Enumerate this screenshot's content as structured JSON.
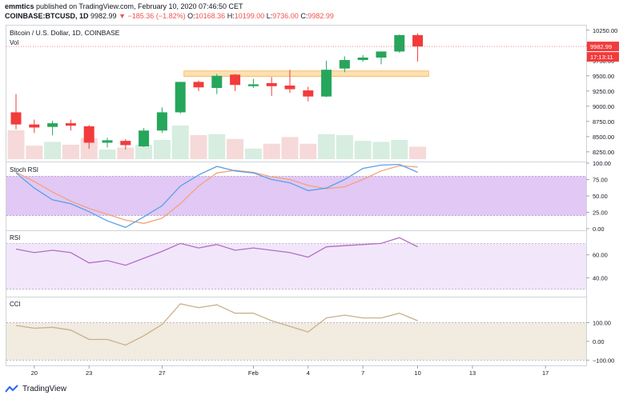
{
  "header": {
    "publisher": "emmtics",
    "published_text": "published on TradingView.com, February 10, 2020 07:46:50 CET",
    "symbol": "COINBASE:BTCUSD, 1D",
    "price": "9982.99",
    "change_arrow": "▼",
    "change": "−185.36 (−1.82%)",
    "o_label": "O:",
    "o_val": "10168.36",
    "h_label": "H:",
    "h_val": "10199.00",
    "l_label": "L:",
    "l_val": "9736.00",
    "c_label": "C:",
    "c_val": "9982.99"
  },
  "footer": {
    "brand": "TradingView"
  },
  "colors": {
    "up": "#26a65b",
    "down": "#f23b3b",
    "vol_up": "#d6ede0",
    "vol_down": "#f6d9d9",
    "stoch_k": "#5aa0e6",
    "stoch_d": "#f5a27a",
    "stoch_band": "#e1c8f5",
    "rsi_line": "#b26fc4",
    "rsi_band": "#f2e6fb",
    "cci_line": "#c9b08e",
    "cci_band": "#f1ebe0",
    "zone": "#fde0b0"
  },
  "chart_data": {
    "type": "candlestick",
    "title": "Bitcoin / U.S. Dollar, 1D, COINBASE",
    "volume_label": "Vol",
    "price_labels": [
      "9982.99",
      "17:13:11"
    ],
    "x_tick_labels": [
      "20",
      "23",
      "27",
      "Feb",
      "4",
      "7",
      "10",
      "13",
      "17"
    ],
    "y_ticks": [
      8250,
      8500,
      8750,
      9000,
      9250,
      9500,
      9750,
      10000,
      10250
    ],
    "y_tick_labels": [
      "8250.00",
      "8500.00",
      "8750.00",
      "9000.00",
      "9250.00",
      "9500.00",
      "9750.00",
      "10000.00",
      "10250.00"
    ],
    "ylim": [
      8130,
      10300
    ],
    "dates": [
      "2020-01-19",
      "2020-01-20",
      "2020-01-21",
      "2020-01-22",
      "2020-01-23",
      "2020-01-24",
      "2020-01-25",
      "2020-01-26",
      "2020-01-27",
      "2020-01-28",
      "2020-01-29",
      "2020-01-30",
      "2020-01-31",
      "2020-02-01",
      "2020-02-02",
      "2020-02-03",
      "2020-02-04",
      "2020-02-05",
      "2020-02-06",
      "2020-02-07",
      "2020-02-08",
      "2020-02-09",
      "2020-02-10"
    ],
    "candles": [
      {
        "o": 8900,
        "h": 9200,
        "l": 8620,
        "c": 8700
      },
      {
        "o": 8700,
        "h": 8780,
        "l": 8560,
        "c": 8650
      },
      {
        "o": 8660,
        "h": 8760,
        "l": 8520,
        "c": 8720
      },
      {
        "o": 8720,
        "h": 8780,
        "l": 8600,
        "c": 8680
      },
      {
        "o": 8670,
        "h": 8690,
        "l": 8300,
        "c": 8400
      },
      {
        "o": 8400,
        "h": 8480,
        "l": 8320,
        "c": 8440
      },
      {
        "o": 8430,
        "h": 8460,
        "l": 8290,
        "c": 8360
      },
      {
        "o": 8340,
        "h": 8640,
        "l": 8330,
        "c": 8600
      },
      {
        "o": 8600,
        "h": 8980,
        "l": 8560,
        "c": 8900
      },
      {
        "o": 8900,
        "h": 9400,
        "l": 8880,
        "c": 9400
      },
      {
        "o": 9400,
        "h": 9420,
        "l": 9250,
        "c": 9310
      },
      {
        "o": 9300,
        "h": 9530,
        "l": 9200,
        "c": 9500
      },
      {
        "o": 9520,
        "h": 9530,
        "l": 9250,
        "c": 9350
      },
      {
        "o": 9330,
        "h": 9450,
        "l": 9300,
        "c": 9360
      },
      {
        "o": 9380,
        "h": 9480,
        "l": 9170,
        "c": 9330
      },
      {
        "o": 9340,
        "h": 9600,
        "l": 9220,
        "c": 9280
      },
      {
        "o": 9260,
        "h": 9320,
        "l": 9080,
        "c": 9160
      },
      {
        "o": 9160,
        "h": 9750,
        "l": 9150,
        "c": 9600
      },
      {
        "o": 9620,
        "h": 9820,
        "l": 9560,
        "c": 9760
      },
      {
        "o": 9760,
        "h": 9840,
        "l": 9730,
        "c": 9800
      },
      {
        "o": 9800,
        "h": 9900,
        "l": 9690,
        "c": 9900
      },
      {
        "o": 9900,
        "h": 10180,
        "l": 9880,
        "c": 10170
      },
      {
        "o": 10170,
        "h": 10200,
        "l": 9736,
        "c": 9983
      }
    ],
    "volume": [
      0.6,
      0.28,
      0.36,
      0.3,
      0.44,
      0.2,
      0.24,
      0.3,
      0.4,
      0.7,
      0.5,
      0.52,
      0.42,
      0.22,
      0.32,
      0.46,
      0.32,
      0.52,
      0.5,
      0.38,
      0.36,
      0.4,
      0.26
    ],
    "zone": {
      "from_index": 9.2,
      "to_index": 22.6,
      "low": 9490,
      "high": 9580
    },
    "stoch_rsi": {
      "title": "Stoch RSI",
      "ylim": [
        0,
        100
      ],
      "y_ticks": [
        0,
        25,
        50,
        75,
        100
      ],
      "y_tick_labels": [
        "0.00",
        "25.00",
        "50.00",
        "75.00",
        "100.00"
      ],
      "band": [
        20,
        80
      ],
      "series": [
        {
          "values": [
            85,
            62,
            44,
            38,
            26,
            12,
            2,
            18,
            35,
            65,
            82,
            95,
            88,
            85,
            75,
            70,
            58,
            62,
            75,
            92,
            97,
            98,
            86
          ]
        },
        {
          "values": [
            86,
            72,
            56,
            42,
            31,
            22,
            13,
            8,
            16,
            38,
            65,
            85,
            89,
            86,
            79,
            75,
            66,
            61,
            64,
            75,
            88,
            96,
            94
          ]
        }
      ]
    },
    "rsi": {
      "title": "RSI",
      "ylim": [
        25,
        80
      ],
      "y_ticks": [
        40,
        60
      ],
      "y_tick_labels": [
        "40.00",
        "60.00"
      ],
      "band": [
        30,
        70
      ],
      "values": [
        65,
        62,
        64,
        62,
        53,
        55,
        51,
        57,
        63,
        70,
        66,
        69,
        64,
        66,
        64,
        62,
        58,
        67,
        68,
        69,
        70,
        75,
        67
      ]
    },
    "cci": {
      "title": "CCI",
      "ylim": [
        -120,
        230
      ],
      "y_ticks": [
        -100,
        0,
        100
      ],
      "y_tick_labels": [
        "−100.00",
        "0.00",
        "100.00"
      ],
      "band": [
        -100,
        100
      ],
      "values": [
        85,
        70,
        75,
        60,
        10,
        10,
        -20,
        30,
        90,
        200,
        180,
        195,
        150,
        150,
        110,
        80,
        50,
        125,
        140,
        125,
        125,
        150,
        110
      ]
    }
  }
}
